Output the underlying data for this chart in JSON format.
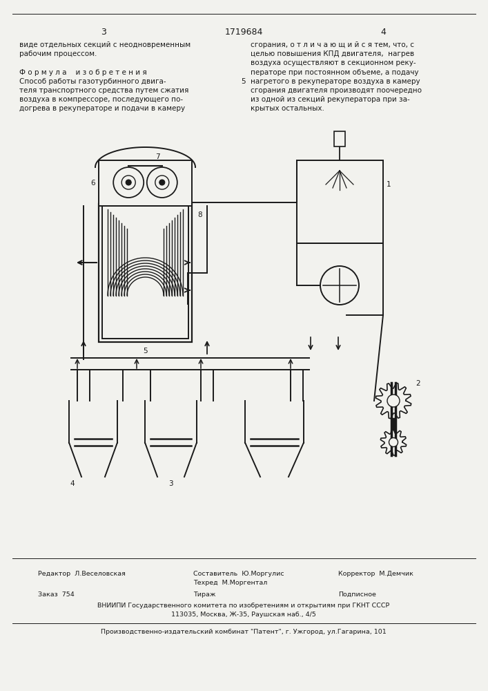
{
  "page_number_left": "3",
  "page_number_center": "1719684",
  "page_number_right": "4",
  "left_col_lines": [
    "виде отдельных секций с неодновременным",
    "рабочим процессом.",
    "",
    "Ф о р м у л а    и з о б р е т е н и я",
    "Способ работы газотурбинного двига-",
    "теля транспортного средства путем сжатия",
    "воздуха в компрессоре, последующего по-",
    "догрева в рекуператоре и подачи в камеру"
  ],
  "right_col_lines": [
    "сгорания, о т л и ч а ю щ и й с я тем, что, с",
    "целью повышения КПД двигателя,  нагрев",
    "воздуха осуществляют в секционном реку-",
    "ператоре при постоянном объеме, а подачу",
    "нагретого в рекуператоре воздуха в камеру",
    "сгорания двигателя производят поочередно",
    "из одной из секций рекуператора при за-",
    "крытых остальных."
  ],
  "footer_editor": "Редактор  Л.Веселовская",
  "footer_composer": "Составитель  Ю.Моргулис",
  "footer_techred": "Техред  М.Моргентал",
  "footer_corrector": "Корректор  М.Демчик",
  "footer_order": "Заказ  754",
  "footer_tirazh": "Тираж",
  "footer_podpisnoe": "Подписное",
  "footer_vnipi": "ВНИИПИ Государственного комитета по изобретениям и открытиям при ГКНТ СССР",
  "footer_address": "113035, Москва, Ж-35, Раушская наб., 4/5",
  "footer_publisher": "Производственно-издательский комбинат \"Патент\", г. Ужгород, ул.Гагарина, 101",
  "bg_color": "#f2f2ee",
  "text_color": "#1a1a1a",
  "line_color": "#1a1a1a"
}
